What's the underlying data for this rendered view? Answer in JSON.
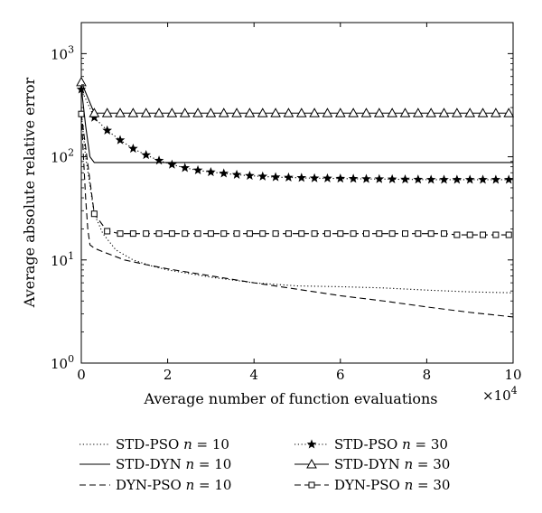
{
  "chart_data": {
    "type": "line",
    "xlabel": "Average number of function evaluations",
    "x_multiplier": "×10",
    "x_multiplier_exp": "4",
    "ylabel": "Average absolute relative error",
    "yscale": "log",
    "xlim": [
      0,
      10
    ],
    "ylim": [
      1,
      2000
    ],
    "x_ticks": [
      "0",
      "2",
      "4",
      "6",
      "8",
      "10"
    ],
    "x_tick_values": [
      0,
      2,
      4,
      6,
      8,
      10
    ],
    "y_ticks": [
      {
        "base": "10",
        "exp": "0",
        "value": 1
      },
      {
        "base": "10",
        "exp": "1",
        "value": 10
      },
      {
        "base": "10",
        "exp": "2",
        "value": 100
      },
      {
        "base": "10",
        "exp": "3",
        "value": 1000
      }
    ],
    "grid": false,
    "legend_position": "bottom",
    "series": [
      {
        "name": "STD-PSO",
        "n_value": "10",
        "style": "dotted",
        "marker": "none",
        "x": [
          0,
          0.1,
          0.3,
          0.5,
          0.8,
          1.2,
          1.6,
          2,
          3,
          4,
          5,
          6,
          7,
          8,
          9,
          10
        ],
        "y": [
          260,
          100,
          28,
          18,
          12.5,
          10,
          8.8,
          8.0,
          6.8,
          6.0,
          5.6,
          5.5,
          5.35,
          5.1,
          4.9,
          4.8
        ]
      },
      {
        "name": "STD-DYN",
        "n_value": "10",
        "style": "solid",
        "marker": "none",
        "x": [
          0,
          0.1,
          0.2,
          0.3,
          2,
          4,
          6,
          8,
          10
        ],
        "y": [
          470,
          200,
          100,
          88,
          88,
          88,
          88,
          88,
          88
        ]
      },
      {
        "name": "DYN-PSO",
        "n_value": "10",
        "style": "dashed",
        "marker": "none",
        "x": [
          0,
          0.05,
          0.1,
          0.15,
          0.2,
          0.3,
          0.5,
          1,
          1.5,
          2,
          3,
          4,
          5,
          6,
          7,
          8,
          9,
          10
        ],
        "y": [
          260,
          100,
          40,
          20,
          14,
          13,
          12,
          10,
          9.0,
          8.2,
          7.0,
          6.0,
          5.2,
          4.5,
          4.0,
          3.5,
          3.1,
          2.8
        ]
      },
      {
        "name": "STD-PSO",
        "n_value": "30",
        "style": "dotted",
        "marker": "star",
        "x": [
          0,
          0.3,
          0.6,
          0.9,
          1.2,
          1.5,
          1.8,
          2.1,
          2.4,
          2.7,
          3,
          3.3,
          3.6,
          3.9,
          4.2,
          4.5,
          4.8,
          5.1,
          5.4,
          5.7,
          6,
          6.3,
          6.6,
          6.9,
          7.2,
          7.5,
          7.8,
          8.1,
          8.4,
          8.7,
          9,
          9.3,
          9.6,
          9.9
        ],
        "y": [
          450,
          240,
          180,
          145,
          120,
          104,
          92,
          84,
          78,
          74,
          71,
          69,
          67,
          65.5,
          64.5,
          63.5,
          63,
          62.5,
          62,
          61.8,
          61.5,
          61.3,
          61,
          60.8,
          60.6,
          60.4,
          60.2,
          60,
          60,
          60,
          60,
          60,
          60,
          60
        ]
      },
      {
        "name": "STD-DYN",
        "n_value": "30",
        "style": "solid",
        "marker": "triangle",
        "x": [
          0,
          0.3,
          0.6,
          0.9,
          1.2,
          1.5,
          1.8,
          2.1,
          2.4,
          2.7,
          3,
          3.3,
          3.6,
          3.9,
          4.2,
          4.5,
          4.8,
          5.1,
          5.4,
          5.7,
          6,
          6.3,
          6.6,
          6.9,
          7.2,
          7.5,
          7.8,
          8.1,
          8.4,
          8.7,
          9,
          9.3,
          9.6,
          9.9
        ],
        "y": [
          530,
          265,
          265,
          265,
          265,
          265,
          265,
          265,
          265,
          265,
          265,
          265,
          265,
          265,
          265,
          265,
          265,
          265,
          265,
          265,
          265,
          265,
          265,
          265,
          265,
          265,
          265,
          265,
          265,
          265,
          265,
          265,
          265,
          265
        ]
      },
      {
        "name": "DYN-PSO",
        "n_value": "30",
        "style": "dashed",
        "marker": "square",
        "x": [
          0,
          0.3,
          0.6,
          0.9,
          1.2,
          1.5,
          1.8,
          2.1,
          2.4,
          2.7,
          3,
          3.3,
          3.6,
          3.9,
          4.2,
          4.5,
          4.8,
          5.1,
          5.4,
          5.7,
          6,
          6.3,
          6.6,
          6.9,
          7.2,
          7.5,
          7.8,
          8.1,
          8.4,
          8.7,
          9,
          9.3,
          9.6,
          9.9
        ],
        "y": [
          260,
          28,
          19,
          18,
          18,
          18,
          18,
          18,
          18,
          18,
          18,
          18,
          18,
          18,
          18,
          18,
          18,
          18,
          18,
          18,
          18,
          18,
          18,
          18,
          18,
          18,
          18,
          18,
          18,
          17.5,
          17.5,
          17.5,
          17.5,
          17.5
        ]
      }
    ]
  }
}
